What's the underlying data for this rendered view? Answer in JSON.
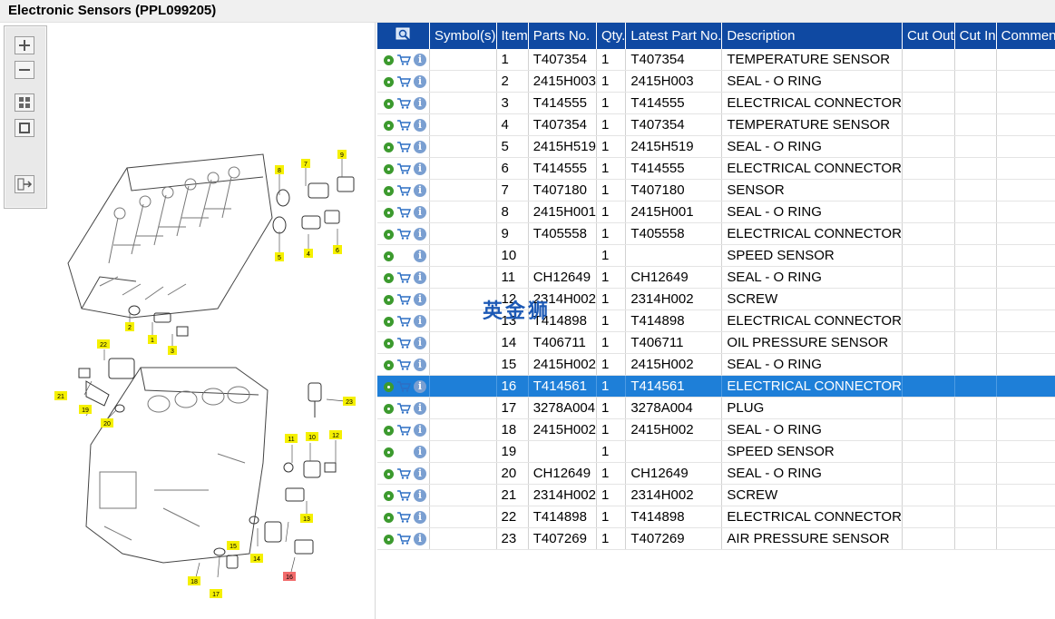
{
  "window": {
    "title": "Electronic Sensors (PPL099205)"
  },
  "toolbar": {
    "buttons": [
      {
        "name": "zoom-in",
        "icon": "plus-icon"
      },
      {
        "name": "zoom-out",
        "icon": "minus-icon"
      },
      {
        "name": "fit-window",
        "icon": "grid-icon"
      },
      {
        "name": "actual-size",
        "icon": "square-icon"
      },
      {
        "name": "export",
        "icon": "export-icon"
      }
    ]
  },
  "diagram": {
    "callouts": [
      "1",
      "2",
      "3",
      "4",
      "5",
      "6",
      "7",
      "8",
      "9",
      "10",
      "11",
      "12",
      "13",
      "14",
      "15",
      "16",
      "17",
      "18",
      "19",
      "20",
      "21",
      "22",
      "23"
    ],
    "highlighted": "16"
  },
  "table": {
    "columns": [
      "Symbol(s)",
      "Item",
      "Parts No.",
      "Qty.",
      "Latest Part No.",
      "Description",
      "Cut Out",
      "Cut In",
      "Comment"
    ],
    "rows": [
      {
        "item": "1",
        "part": "T407354",
        "qty": "1",
        "latest": "T407354",
        "desc": "TEMPERATURE SENSOR",
        "cart": true
      },
      {
        "item": "2",
        "part": "2415H003",
        "qty": "1",
        "latest": "2415H003",
        "desc": "SEAL - O RING",
        "cart": true
      },
      {
        "item": "3",
        "part": "T414555",
        "qty": "1",
        "latest": "T414555",
        "desc": "ELECTRICAL CONNECTOR",
        "cart": true
      },
      {
        "item": "4",
        "part": "T407354",
        "qty": "1",
        "latest": "T407354",
        "desc": "TEMPERATURE SENSOR",
        "cart": true
      },
      {
        "item": "5",
        "part": "2415H519",
        "qty": "1",
        "latest": "2415H519",
        "desc": "SEAL - O RING",
        "cart": true
      },
      {
        "item": "6",
        "part": "T414555",
        "qty": "1",
        "latest": "T414555",
        "desc": "ELECTRICAL CONNECTOR",
        "cart": true
      },
      {
        "item": "7",
        "part": "T407180",
        "qty": "1",
        "latest": "T407180",
        "desc": "SENSOR",
        "cart": true
      },
      {
        "item": "8",
        "part": "2415H001",
        "qty": "1",
        "latest": "2415H001",
        "desc": "SEAL - O RING",
        "cart": true
      },
      {
        "item": "9",
        "part": "T405558",
        "qty": "1",
        "latest": "T405558",
        "desc": "ELECTRICAL CONNECTOR",
        "cart": true
      },
      {
        "item": "10",
        "part": "",
        "qty": "1",
        "latest": "",
        "desc": "SPEED SENSOR",
        "cart": false
      },
      {
        "item": "11",
        "part": "CH12649",
        "qty": "1",
        "latest": "CH12649",
        "desc": "SEAL - O RING",
        "cart": true
      },
      {
        "item": "12",
        "part": "2314H002",
        "qty": "1",
        "latest": "2314H002",
        "desc": "SCREW",
        "cart": true
      },
      {
        "item": "13",
        "part": "T414898",
        "qty": "1",
        "latest": "T414898",
        "desc": "ELECTRICAL CONNECTOR",
        "cart": true
      },
      {
        "item": "14",
        "part": "T406711",
        "qty": "1",
        "latest": "T406711",
        "desc": "OIL PRESSURE SENSOR",
        "cart": true
      },
      {
        "item": "15",
        "part": "2415H002",
        "qty": "1",
        "latest": "2415H002",
        "desc": "SEAL - O RING",
        "cart": true
      },
      {
        "item": "16",
        "part": "T414561",
        "qty": "1",
        "latest": "T414561",
        "desc": "ELECTRICAL CONNECTOR",
        "cart": true
      },
      {
        "item": "17",
        "part": "3278A004",
        "qty": "1",
        "latest": "3278A004",
        "desc": "PLUG",
        "cart": true
      },
      {
        "item": "18",
        "part": "2415H002",
        "qty": "1",
        "latest": "2415H002",
        "desc": "SEAL - O RING",
        "cart": true
      },
      {
        "item": "19",
        "part": "",
        "qty": "1",
        "latest": "",
        "desc": "SPEED SENSOR",
        "cart": false
      },
      {
        "item": "20",
        "part": "CH12649",
        "qty": "1",
        "latest": "CH12649",
        "desc": "SEAL - O RING",
        "cart": true
      },
      {
        "item": "21",
        "part": "2314H002",
        "qty": "1",
        "latest": "2314H002",
        "desc": "SCREW",
        "cart": true
      },
      {
        "item": "22",
        "part": "T414898",
        "qty": "1",
        "latest": "T414898",
        "desc": "ELECTRICAL CONNECTOR",
        "cart": true
      },
      {
        "item": "23",
        "part": "T407269",
        "qty": "1",
        "latest": "T407269",
        "desc": "AIR PRESSURE SENSOR",
        "cart": true
      }
    ],
    "selected_item": "16"
  },
  "watermark": "英金狮",
  "colors": {
    "header": "#0f49a2",
    "selection": "#1e7fd8",
    "callout": "#f5f000",
    "callout_highlight": "#f26b6b"
  }
}
